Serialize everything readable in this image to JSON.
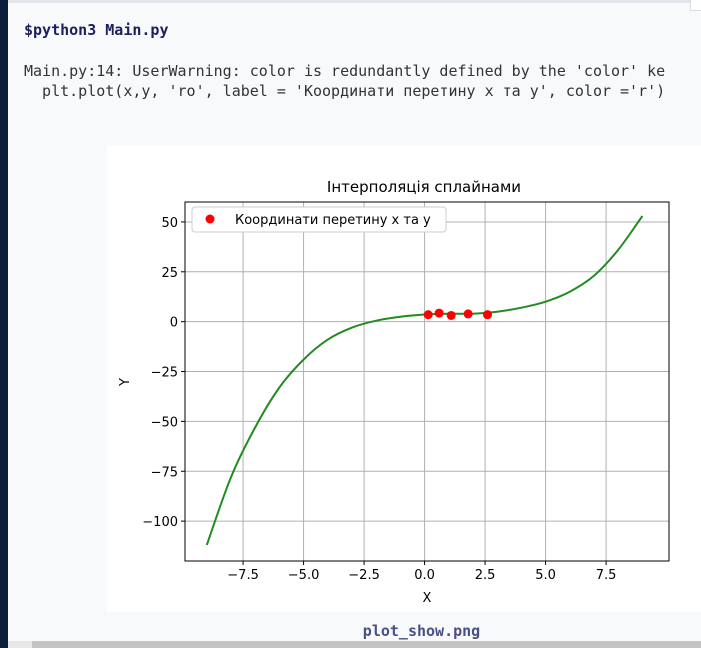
{
  "console": {
    "command": "$python3 Main.py",
    "warning_line1": "Main.py:14: UserWarning: color is redundantly defined by the 'color' ke",
    "warning_line2": "  plt.plot(x,y, 'ro', label = 'Координати перетину x та y', color ='r')"
  },
  "image": {
    "filename": "plot_show.png"
  },
  "colors": {
    "background": "#f8f9fa",
    "sidebar": "#0b1f3a",
    "curve": "#228b22",
    "points": "#ff0000",
    "grid": "#b0b0b0"
  },
  "chart_data": {
    "type": "line",
    "title": "Інтерполяція сплайнами",
    "xlabel": "X",
    "ylabel": "Y",
    "xlim": [
      -9.9,
      10.1
    ],
    "ylim": [
      -120,
      60
    ],
    "xticks": [
      -7.5,
      -5.0,
      -2.5,
      0.0,
      2.5,
      5.0,
      7.5
    ],
    "xtick_labels": [
      "−7.5",
      "−5.0",
      "−2.5",
      "0.0",
      "2.5",
      "5.0",
      "7.5"
    ],
    "yticks": [
      50,
      25,
      0,
      -25,
      -50,
      -75,
      -100
    ],
    "ytick_labels": [
      "50",
      "25",
      "0",
      "−25",
      "−50",
      "−75",
      "−100"
    ],
    "grid": true,
    "legend_position": "top-left",
    "series": [
      {
        "name": "",
        "kind": "line",
        "color": "#228b22",
        "x": [
          -9.0,
          -8.0,
          -7.0,
          -6.0,
          -5.0,
          -4.0,
          -3.0,
          -2.0,
          -1.0,
          0.0,
          1.0,
          2.0,
          3.0,
          4.0,
          5.0,
          6.0,
          7.0,
          8.0,
          9.0
        ],
        "y": [
          -112,
          -78,
          -53,
          -33,
          -19,
          -9,
          -3,
          0.5,
          2.5,
          3.6,
          4,
          4,
          5,
          7,
          10,
          15,
          23,
          36,
          53
        ]
      },
      {
        "name": "Координати перетину x та y",
        "kind": "scatter",
        "color": "#ff0000",
        "x": [
          0.15,
          0.6,
          1.1,
          1.8,
          2.6
        ],
        "y": [
          3.5,
          4.3,
          3.1,
          3.9,
          3.5
        ]
      }
    ]
  }
}
